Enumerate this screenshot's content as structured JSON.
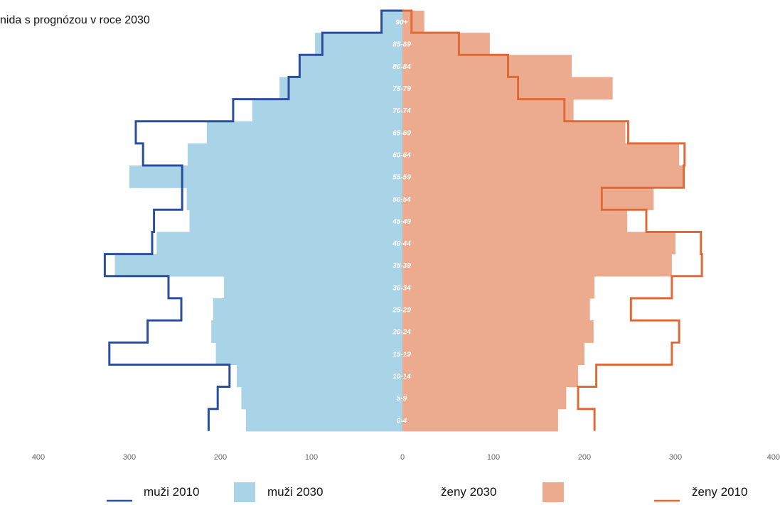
{
  "chart_data": {
    "type": "bar",
    "title": "nida s prognózou v roce 2030",
    "xlim": [
      -400,
      400
    ],
    "xticks": [
      "400",
      "300",
      "200",
      "100",
      "0",
      "100",
      "200",
      "300",
      "400"
    ],
    "categories": [
      "0-4",
      "5-9",
      "10-14",
      "15-19",
      "20-24",
      "25-29",
      "30-34",
      "35-39",
      "40-44",
      "45-49",
      "50-54",
      "55-59",
      "60-64",
      "65-69",
      "70-74",
      "75-79",
      "80-84",
      "85-89",
      "90+"
    ],
    "series": [
      {
        "name": "muži 2030",
        "kind": "bar",
        "side": "left",
        "color": "#a9d3e6",
        "values": [
          172,
          177,
          182,
          205,
          210,
          208,
          196,
          316,
          270,
          234,
          237,
          300,
          236,
          215,
          165,
          135,
          112,
          96,
          22
        ]
      },
      {
        "name": "ženy 2030",
        "kind": "bar",
        "side": "right",
        "color": "#ecab8f",
        "values": [
          171,
          180,
          193,
          200,
          210,
          206,
          211,
          296,
          300,
          247,
          276,
          310,
          304,
          245,
          188,
          231,
          186,
          96,
          24
        ]
      },
      {
        "name": "muži 2010",
        "kind": "step",
        "side": "left",
        "color": "#2b4fa0",
        "values": [
          213,
          203,
          190,
          322,
          280,
          243,
          257,
          327,
          275,
          273,
          242,
          242,
          285,
          293,
          186,
          125,
          113,
          88,
          23
        ]
      },
      {
        "name": "ženy 2010",
        "kind": "step",
        "side": "right",
        "color": "#e06a35",
        "values": [
          211,
          193,
          213,
          296,
          304,
          251,
          296,
          329,
          328,
          268,
          219,
          309,
          310,
          248,
          178,
          127,
          116,
          62,
          10
        ]
      }
    ]
  },
  "legend": {
    "items": [
      {
        "label": "muži 2010",
        "color": "#2b4fa0",
        "kind": "line"
      },
      {
        "label": "muži 2030",
        "color": "#a9d3e6",
        "kind": "box"
      },
      {
        "label": "ženy 2030",
        "color": "#ecab8f",
        "kind": "box"
      },
      {
        "label": "ženy 2010",
        "color": "#e06a35",
        "kind": "line"
      }
    ]
  }
}
